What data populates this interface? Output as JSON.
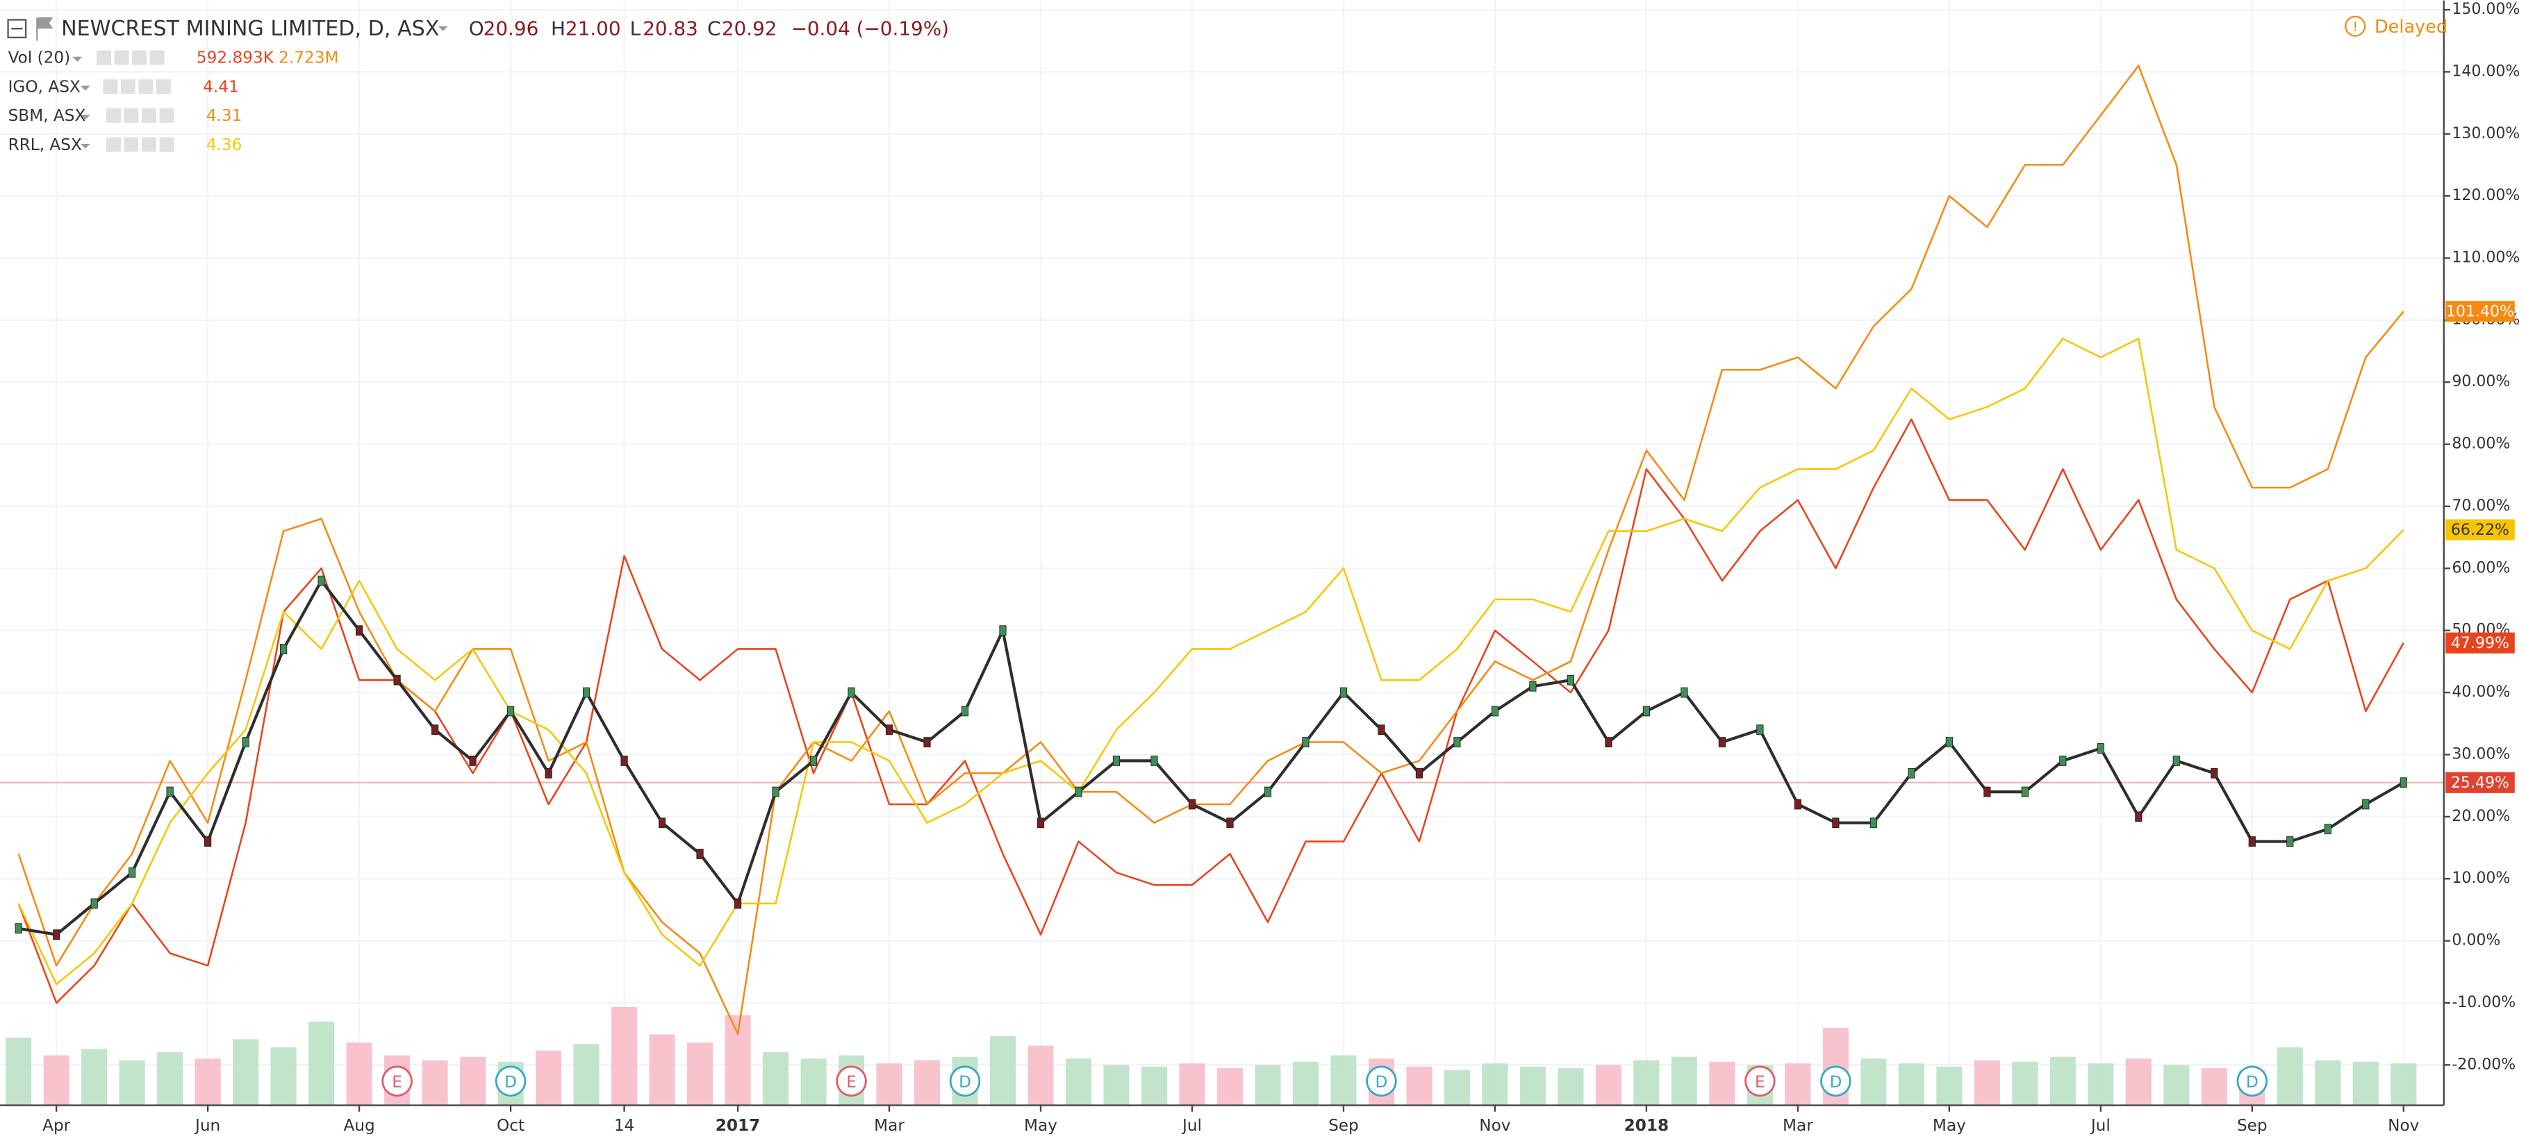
{
  "chart_data": {
    "type": "line",
    "title": "NEWCREST MINING LIMITED, D, ASX",
    "ohlc": [
      {
        "label": "O",
        "value": "20.96"
      },
      {
        "label": "H",
        "value": "21.00"
      },
      {
        "label": "L",
        "value": "20.83"
      },
      {
        "label": "C",
        "value": "20.92"
      }
    ],
    "change": "−0.04 (−0.19%)",
    "status": "Delayed",
    "categories": [
      null,
      "Apr",
      null,
      null,
      null,
      "Jun",
      null,
      null,
      null,
      "Aug",
      null,
      null,
      null,
      "Oct",
      null,
      null,
      "14",
      null,
      null,
      "2017",
      null,
      null,
      null,
      "Mar",
      null,
      null,
      null,
      "May",
      null,
      null,
      null,
      "Jul",
      null,
      null,
      null,
      "Sep",
      null,
      null,
      null,
      "Nov",
      null,
      null,
      null,
      "2018",
      null,
      null,
      null,
      "Mar",
      null,
      null,
      null,
      "May",
      null,
      null,
      null,
      "Jul",
      null,
      null,
      null,
      "Sep",
      null,
      null,
      null,
      "Nov"
    ],
    "main": {
      "color": "#2e2e2e",
      "values": [
        2,
        1,
        6,
        11,
        24,
        16,
        32,
        47,
        58,
        50,
        42,
        34,
        29,
        37,
        27,
        40,
        29,
        19,
        14,
        6,
        24,
        29,
        40,
        34,
        32,
        37,
        50,
        19,
        24,
        29,
        29,
        22,
        19,
        24,
        32,
        40,
        34,
        27,
        32,
        37,
        41,
        42,
        32,
        37,
        40,
        32,
        34,
        22,
        19,
        19,
        27,
        32,
        24,
        24,
        29,
        31,
        20,
        29,
        27,
        16,
        16,
        18,
        22,
        25.49
      ],
      "last_label": "25.49%",
      "tag_color": "#e3412f",
      "line_color": "#f4b4b4"
    },
    "series": [
      {
        "name": "IGO, ASX",
        "legend_value": "4.41",
        "color": "#e8431c",
        "last_label": "47.99%",
        "values": [
          6,
          -10,
          -4,
          6,
          -2,
          -4,
          19,
          53,
          60,
          42,
          42,
          37,
          27,
          37,
          22,
          32,
          62,
          47,
          42,
          47,
          47,
          27,
          40,
          22,
          22,
          29,
          14,
          1,
          16,
          11,
          9,
          9,
          14,
          3,
          16,
          16,
          27,
          16,
          37,
          50,
          45,
          40,
          50,
          76,
          68,
          58,
          66,
          71,
          60,
          73,
          84,
          71,
          71,
          63,
          76,
          63,
          71,
          55,
          47,
          40,
          55,
          58,
          37,
          47.99
        ]
      },
      {
        "name": "SBM, ASX",
        "legend_value": "4.31",
        "color": "#f68a10",
        "last_label": "101.40%",
        "values": [
          14,
          -4,
          6,
          14,
          29,
          19,
          42,
          66,
          68,
          53,
          42,
          37,
          47,
          47,
          29,
          32,
          11,
          3,
          -2,
          -15,
          24,
          32,
          29,
          37,
          22,
          27,
          27,
          32,
          24,
          24,
          19,
          22,
          22,
          29,
          32,
          32,
          27,
          29,
          37,
          45,
          42,
          45,
          63,
          79,
          71,
          92,
          92,
          94,
          89,
          99,
          105,
          120,
          115,
          125,
          125,
          133,
          141,
          125,
          86,
          73,
          73,
          76,
          94,
          101.4
        ]
      },
      {
        "name": "RRL, ASX",
        "legend_value": "4.36",
        "color": "#f7c600",
        "last_label": "66.22%",
        "values": [
          6,
          -7,
          -2,
          6,
          19,
          27,
          34,
          53,
          47,
          58,
          47,
          42,
          47,
          37,
          34,
          27,
          11,
          1,
          -4,
          6,
          6,
          32,
          32,
          29,
          19,
          22,
          27,
          29,
          24,
          34,
          40,
          47,
          47,
          50,
          53,
          60,
          42,
          42,
          47,
          55,
          55,
          53,
          66,
          66,
          68,
          66,
          73,
          76,
          76,
          79,
          89,
          84,
          86,
          89,
          97,
          94,
          97,
          63,
          60,
          50,
          47,
          58,
          60,
          66.22
        ]
      }
    ],
    "volume": {
      "name": "Vol (20)",
      "labels": [
        "592.893K",
        "2.723M"
      ],
      "label_colors": [
        "#e8431c",
        "#f68a10"
      ],
      "up_color": "#b7dfc1",
      "down_color": "#f7b8c4",
      "vlim": [
        0,
        10000000
      ],
      "values": [
        4200000,
        3100000,
        3500000,
        2800000,
        3300000,
        2900000,
        4100000,
        3600000,
        5200000,
        3900000,
        3100000,
        2800000,
        3000000,
        2700000,
        3400000,
        3800000,
        6100000,
        4400000,
        3900000,
        5600000,
        3300000,
        2900000,
        3100000,
        2600000,
        2800000,
        3000000,
        4300000,
        3700000,
        2900000,
        2500000,
        2400000,
        2600000,
        2300000,
        2500000,
        2700000,
        3100000,
        2900000,
        2400000,
        2200000,
        2600000,
        2400000,
        2300000,
        2500000,
        2800000,
        3000000,
        2700000,
        2500000,
        2600000,
        4800000,
        2900000,
        2600000,
        2400000,
        2800000,
        2700000,
        3000000,
        2600000,
        2900000,
        2500000,
        2300000,
        2200000,
        3600000,
        2800000,
        2700000,
        2600000
      ]
    },
    "events": [
      null,
      null,
      null,
      null,
      null,
      null,
      null,
      null,
      null,
      null,
      "E",
      null,
      null,
      "D",
      null,
      null,
      null,
      null,
      null,
      null,
      null,
      null,
      "E",
      null,
      null,
      "D",
      null,
      null,
      null,
      null,
      null,
      null,
      null,
      null,
      null,
      null,
      "D",
      null,
      null,
      null,
      null,
      null,
      null,
      null,
      null,
      null,
      "E",
      null,
      "D",
      null,
      null,
      null,
      null,
      null,
      null,
      null,
      null,
      null,
      null,
      "D",
      null,
      null,
      null,
      null
    ],
    "ylim": [
      -26.5,
      151.5
    ],
    "yticks": [
      {
        "value": -20,
        "label": "-20.00%"
      },
      {
        "value": -10,
        "label": "-10.00%"
      },
      {
        "value": 0,
        "label": "0.00%"
      },
      {
        "value": 10,
        "label": "10.00%"
      },
      {
        "value": 20,
        "label": "20.00%"
      },
      {
        "value": 30,
        "label": "30.00%"
      },
      {
        "value": 40,
        "label": "40.00%"
      },
      {
        "value": 50,
        "label": "50.00%"
      },
      {
        "value": 60,
        "label": "60.00%"
      },
      {
        "value": 70,
        "label": "70.00%"
      },
      {
        "value": 80,
        "label": "80.00%"
      },
      {
        "value": 90,
        "label": "90.00%"
      },
      {
        "value": 100,
        "label": "100.00%"
      },
      {
        "value": 110,
        "label": "110.00%"
      },
      {
        "value": 120,
        "label": "120.00%"
      },
      {
        "value": 130,
        "label": "130.00%"
      },
      {
        "value": 140,
        "label": "140.00%"
      },
      {
        "value": 150,
        "label": "150.00%"
      }
    ],
    "grid": true
  }
}
